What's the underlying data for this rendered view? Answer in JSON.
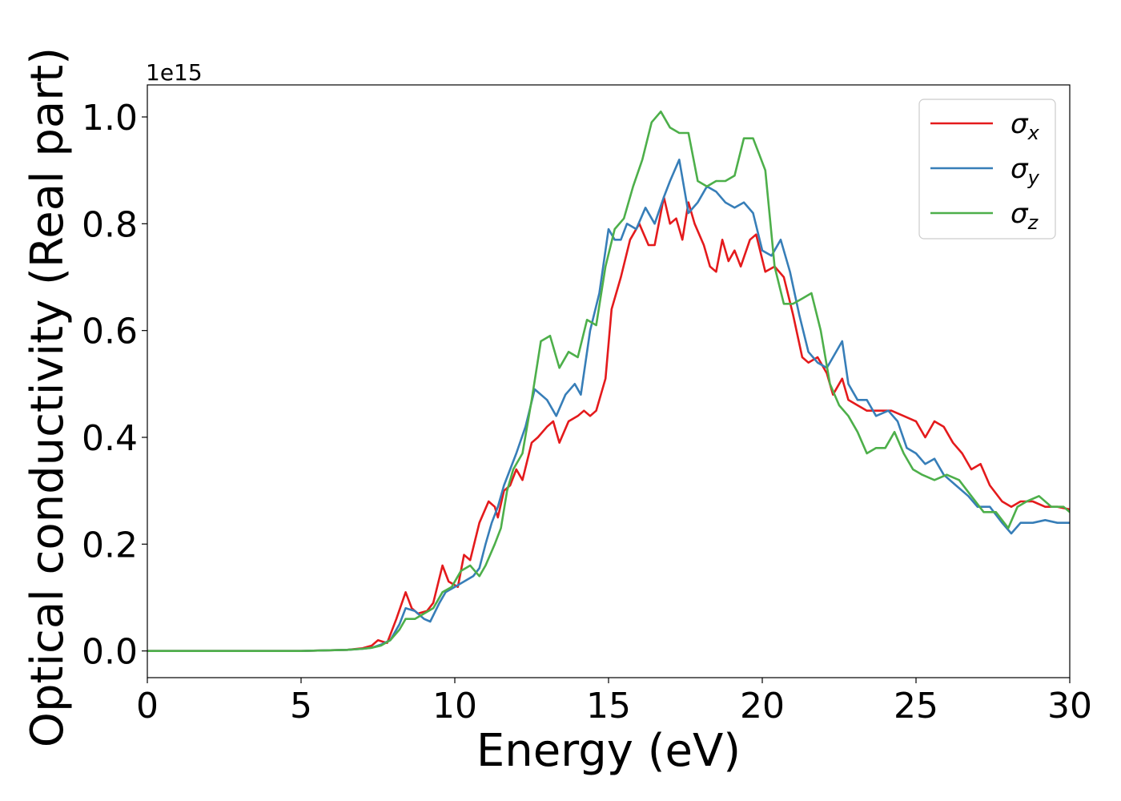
{
  "chart_data": {
    "type": "line",
    "title": "",
    "xlabel": "Energy (eV)",
    "ylabel": "Optical conductivity (Real part)",
    "y_offset_label": "1e15",
    "y_scale": 1000000000000000.0,
    "xlim": [
      0,
      30
    ],
    "ylim": [
      -0.05,
      1.06
    ],
    "x_ticks": [
      0,
      5,
      10,
      15,
      20,
      25,
      30
    ],
    "x_tick_labels": [
      "0",
      "5",
      "10",
      "15",
      "20",
      "25",
      "30"
    ],
    "y_ticks": [
      0.0,
      0.2,
      0.4,
      0.6,
      0.8,
      1.0
    ],
    "y_tick_labels": [
      "0.0",
      "0.2",
      "0.4",
      "0.6",
      "0.8",
      "1.0"
    ],
    "grid": false,
    "legend_position": "top-right",
    "series": [
      {
        "name": "σ",
        "subscript": "x",
        "color": "#e41a1c",
        "points": [
          [
            0,
            0
          ],
          [
            5,
            0
          ],
          [
            6.5,
            0.002
          ],
          [
            7,
            0.005
          ],
          [
            7.3,
            0.01
          ],
          [
            7.5,
            0.02
          ],
          [
            7.8,
            0.015
          ],
          [
            8.1,
            0.06
          ],
          [
            8.4,
            0.11
          ],
          [
            8.6,
            0.08
          ],
          [
            8.8,
            0.07
          ],
          [
            9.1,
            0.075
          ],
          [
            9.3,
            0.09
          ],
          [
            9.6,
            0.16
          ],
          [
            9.8,
            0.13
          ],
          [
            10.1,
            0.12
          ],
          [
            10.3,
            0.18
          ],
          [
            10.5,
            0.17
          ],
          [
            10.8,
            0.24
          ],
          [
            11.1,
            0.28
          ],
          [
            11.3,
            0.27
          ],
          [
            11.4,
            0.25
          ],
          [
            11.6,
            0.3
          ],
          [
            11.8,
            0.31
          ],
          [
            12.0,
            0.34
          ],
          [
            12.2,
            0.32
          ],
          [
            12.5,
            0.39
          ],
          [
            12.7,
            0.4
          ],
          [
            13.0,
            0.42
          ],
          [
            13.2,
            0.43
          ],
          [
            13.4,
            0.39
          ],
          [
            13.7,
            0.43
          ],
          [
            14.0,
            0.44
          ],
          [
            14.2,
            0.45
          ],
          [
            14.4,
            0.44
          ],
          [
            14.6,
            0.45
          ],
          [
            14.9,
            0.51
          ],
          [
            15.1,
            0.64
          ],
          [
            15.4,
            0.7
          ],
          [
            15.7,
            0.77
          ],
          [
            16.0,
            0.8
          ],
          [
            16.3,
            0.76
          ],
          [
            16.5,
            0.76
          ],
          [
            16.8,
            0.85
          ],
          [
            17.0,
            0.8
          ],
          [
            17.2,
            0.81
          ],
          [
            17.4,
            0.77
          ],
          [
            17.6,
            0.84
          ],
          [
            17.8,
            0.8
          ],
          [
            18.1,
            0.76
          ],
          [
            18.3,
            0.72
          ],
          [
            18.5,
            0.71
          ],
          [
            18.7,
            0.77
          ],
          [
            18.9,
            0.73
          ],
          [
            19.1,
            0.75
          ],
          [
            19.3,
            0.72
          ],
          [
            19.6,
            0.77
          ],
          [
            19.8,
            0.78
          ],
          [
            20.1,
            0.71
          ],
          [
            20.4,
            0.72
          ],
          [
            20.7,
            0.7
          ],
          [
            21.0,
            0.63
          ],
          [
            21.3,
            0.55
          ],
          [
            21.5,
            0.54
          ],
          [
            21.8,
            0.55
          ],
          [
            22.1,
            0.52
          ],
          [
            22.3,
            0.48
          ],
          [
            22.6,
            0.51
          ],
          [
            22.8,
            0.47
          ],
          [
            23.1,
            0.46
          ],
          [
            23.4,
            0.45
          ],
          [
            23.8,
            0.45
          ],
          [
            24.2,
            0.45
          ],
          [
            24.6,
            0.44
          ],
          [
            25.0,
            0.43
          ],
          [
            25.3,
            0.4
          ],
          [
            25.6,
            0.43
          ],
          [
            25.9,
            0.42
          ],
          [
            26.2,
            0.39
          ],
          [
            26.5,
            0.37
          ],
          [
            26.8,
            0.34
          ],
          [
            27.1,
            0.35
          ],
          [
            27.4,
            0.31
          ],
          [
            27.8,
            0.28
          ],
          [
            28.1,
            0.27
          ],
          [
            28.4,
            0.28
          ],
          [
            28.8,
            0.28
          ],
          [
            29.2,
            0.27
          ],
          [
            29.6,
            0.27
          ],
          [
            30.0,
            0.265
          ]
        ]
      },
      {
        "name": "σ",
        "subscript": "y",
        "color": "#377eb8",
        "points": [
          [
            0,
            0
          ],
          [
            5,
            0
          ],
          [
            6.5,
            0.002
          ],
          [
            7,
            0.004
          ],
          [
            7.3,
            0.006
          ],
          [
            7.6,
            0.012
          ],
          [
            7.9,
            0.02
          ],
          [
            8.2,
            0.05
          ],
          [
            8.4,
            0.08
          ],
          [
            8.7,
            0.075
          ],
          [
            9.0,
            0.06
          ],
          [
            9.2,
            0.055
          ],
          [
            9.5,
            0.09
          ],
          [
            9.7,
            0.11
          ],
          [
            10.0,
            0.12
          ],
          [
            10.3,
            0.13
          ],
          [
            10.6,
            0.14
          ],
          [
            10.8,
            0.155
          ],
          [
            11.0,
            0.2
          ],
          [
            11.2,
            0.24
          ],
          [
            11.4,
            0.27
          ],
          [
            11.6,
            0.31
          ],
          [
            11.8,
            0.34
          ],
          [
            12.0,
            0.37
          ],
          [
            12.3,
            0.42
          ],
          [
            12.6,
            0.49
          ],
          [
            13.0,
            0.47
          ],
          [
            13.3,
            0.44
          ],
          [
            13.6,
            0.48
          ],
          [
            13.9,
            0.5
          ],
          [
            14.1,
            0.48
          ],
          [
            14.4,
            0.6
          ],
          [
            14.7,
            0.67
          ],
          [
            15.0,
            0.79
          ],
          [
            15.2,
            0.77
          ],
          [
            15.4,
            0.77
          ],
          [
            15.6,
            0.8
          ],
          [
            15.9,
            0.79
          ],
          [
            16.2,
            0.83
          ],
          [
            16.5,
            0.8
          ],
          [
            16.8,
            0.85
          ],
          [
            17.0,
            0.88
          ],
          [
            17.3,
            0.92
          ],
          [
            17.6,
            0.82
          ],
          [
            17.9,
            0.84
          ],
          [
            18.2,
            0.87
          ],
          [
            18.5,
            0.86
          ],
          [
            18.8,
            0.84
          ],
          [
            19.1,
            0.83
          ],
          [
            19.4,
            0.84
          ],
          [
            19.7,
            0.82
          ],
          [
            20.0,
            0.75
          ],
          [
            20.3,
            0.74
          ],
          [
            20.6,
            0.77
          ],
          [
            20.9,
            0.71
          ],
          [
            21.2,
            0.63
          ],
          [
            21.5,
            0.56
          ],
          [
            21.8,
            0.54
          ],
          [
            22.1,
            0.53
          ],
          [
            22.3,
            0.55
          ],
          [
            22.6,
            0.58
          ],
          [
            22.8,
            0.5
          ],
          [
            23.1,
            0.47
          ],
          [
            23.4,
            0.47
          ],
          [
            23.7,
            0.44
          ],
          [
            24.1,
            0.45
          ],
          [
            24.4,
            0.43
          ],
          [
            24.7,
            0.38
          ],
          [
            25.0,
            0.37
          ],
          [
            25.3,
            0.35
          ],
          [
            25.6,
            0.36
          ],
          [
            25.9,
            0.33
          ],
          [
            26.3,
            0.31
          ],
          [
            26.7,
            0.29
          ],
          [
            27.0,
            0.27
          ],
          [
            27.4,
            0.27
          ],
          [
            27.8,
            0.24
          ],
          [
            28.1,
            0.22
          ],
          [
            28.4,
            0.24
          ],
          [
            28.8,
            0.24
          ],
          [
            29.2,
            0.245
          ],
          [
            29.6,
            0.24
          ],
          [
            30.0,
            0.24
          ]
        ]
      },
      {
        "name": "σ",
        "subscript": "z",
        "color": "#4daf4a",
        "points": [
          [
            0,
            0
          ],
          [
            5,
            0
          ],
          [
            6.5,
            0.002
          ],
          [
            7,
            0.004
          ],
          [
            7.3,
            0.006
          ],
          [
            7.6,
            0.01
          ],
          [
            7.9,
            0.02
          ],
          [
            8.2,
            0.04
          ],
          [
            8.4,
            0.06
          ],
          [
            8.7,
            0.06
          ],
          [
            9.0,
            0.07
          ],
          [
            9.3,
            0.08
          ],
          [
            9.6,
            0.11
          ],
          [
            9.9,
            0.12
          ],
          [
            10.2,
            0.15
          ],
          [
            10.5,
            0.16
          ],
          [
            10.8,
            0.14
          ],
          [
            11.0,
            0.16
          ],
          [
            11.3,
            0.2
          ],
          [
            11.5,
            0.23
          ],
          [
            11.7,
            0.3
          ],
          [
            11.9,
            0.34
          ],
          [
            12.2,
            0.37
          ],
          [
            12.5,
            0.47
          ],
          [
            12.8,
            0.58
          ],
          [
            13.1,
            0.59
          ],
          [
            13.4,
            0.53
          ],
          [
            13.7,
            0.56
          ],
          [
            14.0,
            0.55
          ],
          [
            14.3,
            0.62
          ],
          [
            14.6,
            0.61
          ],
          [
            14.9,
            0.72
          ],
          [
            15.2,
            0.79
          ],
          [
            15.5,
            0.81
          ],
          [
            15.8,
            0.87
          ],
          [
            16.1,
            0.92
          ],
          [
            16.4,
            0.99
          ],
          [
            16.7,
            1.01
          ],
          [
            17.0,
            0.98
          ],
          [
            17.3,
            0.97
          ],
          [
            17.6,
            0.97
          ],
          [
            17.9,
            0.88
          ],
          [
            18.2,
            0.87
          ],
          [
            18.5,
            0.88
          ],
          [
            18.8,
            0.88
          ],
          [
            19.1,
            0.89
          ],
          [
            19.4,
            0.96
          ],
          [
            19.7,
            0.96
          ],
          [
            19.9,
            0.93
          ],
          [
            20.1,
            0.9
          ],
          [
            20.4,
            0.72
          ],
          [
            20.7,
            0.65
          ],
          [
            21.0,
            0.65
          ],
          [
            21.3,
            0.66
          ],
          [
            21.6,
            0.67
          ],
          [
            21.9,
            0.6
          ],
          [
            22.2,
            0.5
          ],
          [
            22.5,
            0.46
          ],
          [
            22.8,
            0.44
          ],
          [
            23.1,
            0.41
          ],
          [
            23.4,
            0.37
          ],
          [
            23.7,
            0.38
          ],
          [
            24.0,
            0.38
          ],
          [
            24.3,
            0.41
          ],
          [
            24.6,
            0.37
          ],
          [
            24.9,
            0.34
          ],
          [
            25.2,
            0.33
          ],
          [
            25.6,
            0.32
          ],
          [
            26.0,
            0.33
          ],
          [
            26.4,
            0.32
          ],
          [
            26.8,
            0.29
          ],
          [
            27.2,
            0.26
          ],
          [
            27.6,
            0.26
          ],
          [
            28.0,
            0.23
          ],
          [
            28.3,
            0.27
          ],
          [
            28.6,
            0.28
          ],
          [
            29.0,
            0.29
          ],
          [
            29.4,
            0.27
          ],
          [
            29.8,
            0.27
          ],
          [
            30.0,
            0.26
          ]
        ]
      }
    ]
  }
}
